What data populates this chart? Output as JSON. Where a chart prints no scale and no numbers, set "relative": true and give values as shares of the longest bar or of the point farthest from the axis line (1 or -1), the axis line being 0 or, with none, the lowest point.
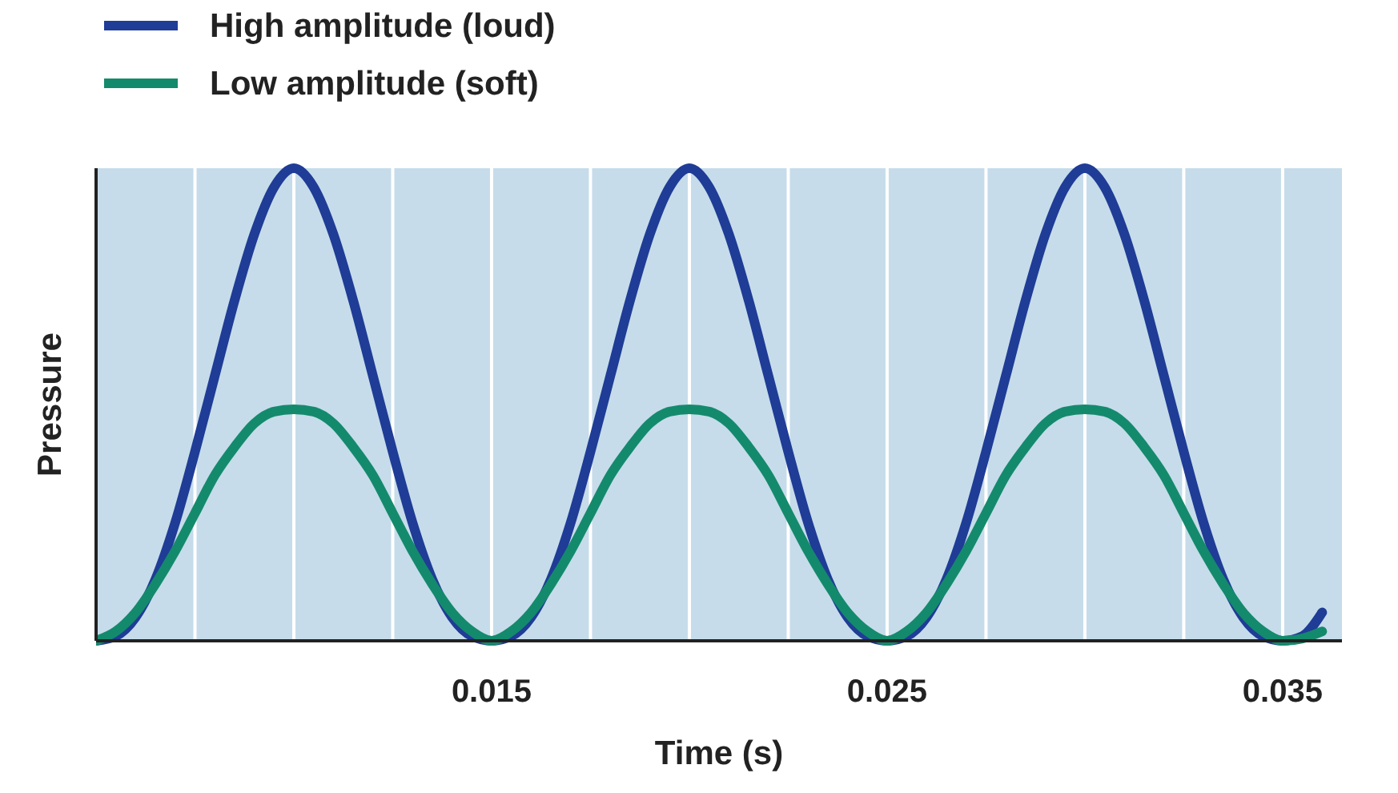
{
  "chart_data": {
    "type": "line",
    "relative": true,
    "xlabel": "Time (s)",
    "ylabel": "Pressure",
    "legend": "top left",
    "grid": "x",
    "line_style": "solid",
    "marker": "none",
    "xlim": [
      0.005,
      0.0365
    ],
    "xticks": [
      {
        "value": 0.0075,
        "label": null
      },
      {
        "value": 0.01,
        "label": null
      },
      {
        "value": 0.0125,
        "label": null
      },
      0.015,
      {
        "value": 0.0175,
        "label": null
      },
      {
        "value": 0.02,
        "label": null
      },
      {
        "value": 0.0225,
        "label": null
      },
      0.025,
      {
        "value": 0.0275,
        "label": null
      },
      {
        "value": 0.03,
        "label": null
      },
      {
        "value": 0.0325,
        "label": null
      },
      0.035
    ],
    "x": [
      0.005,
      0.0055,
      0.006,
      0.0065,
      0.007,
      0.0075,
      0.008,
      0.0085,
      0.009,
      0.0095,
      0.01,
      0.0105,
      0.011,
      0.0115,
      0.012,
      0.0125,
      0.013,
      0.0135,
      0.014,
      0.0145,
      0.015,
      0.0155,
      0.016,
      0.0165,
      0.017,
      0.0175,
      0.018,
      0.0185,
      0.019,
      0.0195,
      0.02,
      0.0205,
      0.021,
      0.0215,
      0.022,
      0.0225,
      0.023,
      0.0235,
      0.024,
      0.0245,
      0.025,
      0.0255,
      0.026,
      0.0265,
      0.027,
      0.0275,
      0.028,
      0.0285,
      0.029,
      0.0295,
      0.03,
      0.0305,
      0.031,
      0.0315,
      0.032,
      0.0325,
      0.033,
      0.0335,
      0.034,
      0.0345,
      0.035,
      0.0355,
      0.036
    ],
    "series": [
      {
        "name": "High amplitude (loud)",
        "color": "#1f3c96",
        "values": [
          0,
          0.01,
          0.05,
          0.13,
          0.25,
          0.4,
          0.56,
          0.72,
          0.86,
          0.96,
          1,
          0.96,
          0.86,
          0.72,
          0.56,
          0.4,
          0.25,
          0.13,
          0.05,
          0.01,
          0,
          0.01,
          0.05,
          0.13,
          0.25,
          0.4,
          0.56,
          0.72,
          0.86,
          0.96,
          1,
          0.96,
          0.86,
          0.72,
          0.56,
          0.4,
          0.25,
          0.13,
          0.05,
          0.01,
          0,
          0.01,
          0.05,
          0.13,
          0.25,
          0.4,
          0.56,
          0.72,
          0.86,
          0.96,
          1,
          0.96,
          0.86,
          0.72,
          0.56,
          0.4,
          0.25,
          0.13,
          0.05,
          0.01,
          0,
          0.01,
          0.06
        ]
      },
      {
        "name": "Low amplitude (soft)",
        "color": "#148a6c",
        "values": [
          0,
          0.02,
          0.06,
          0.12,
          0.19,
          0.27,
          0.35,
          0.41,
          0.46,
          0.485,
          0.49,
          0.485,
          0.46,
          0.41,
          0.35,
          0.27,
          0.19,
          0.12,
          0.06,
          0.02,
          0,
          0.02,
          0.06,
          0.12,
          0.19,
          0.27,
          0.35,
          0.41,
          0.46,
          0.485,
          0.49,
          0.485,
          0.46,
          0.41,
          0.35,
          0.27,
          0.19,
          0.12,
          0.06,
          0.02,
          0,
          0.02,
          0.06,
          0.12,
          0.19,
          0.27,
          0.35,
          0.41,
          0.46,
          0.485,
          0.49,
          0.485,
          0.46,
          0.41,
          0.35,
          0.27,
          0.19,
          0.12,
          0.06,
          0.02,
          0,
          0.005,
          0.02
        ]
      }
    ]
  }
}
